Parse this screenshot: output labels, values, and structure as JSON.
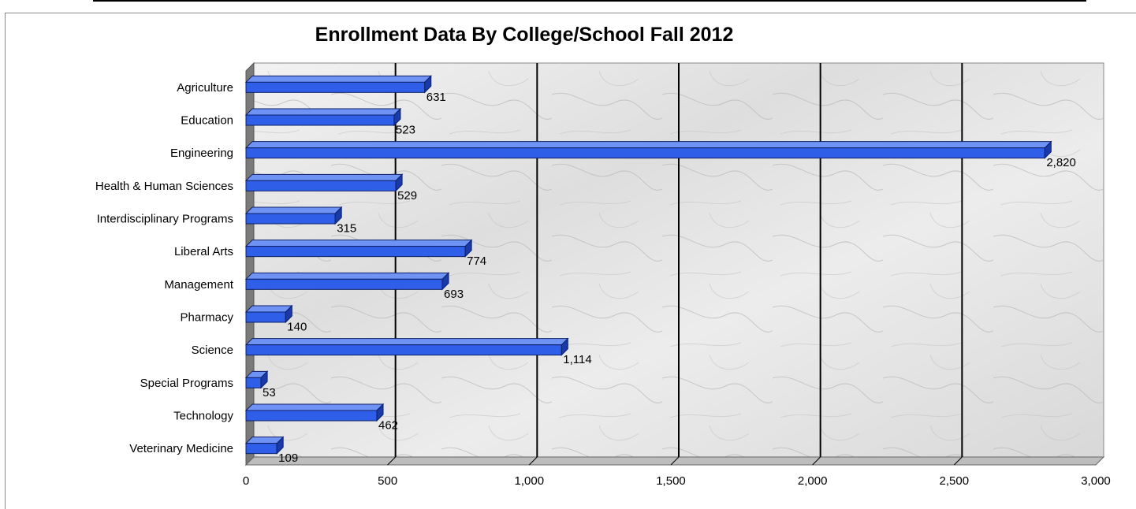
{
  "chart_data": {
    "type": "bar",
    "orientation": "horizontal",
    "title": "Enrollment Data By College/School Fall 2012",
    "xlabel": "",
    "ylabel": "",
    "categories": [
      "Agriculture",
      "Education",
      "Engineering",
      "Health & Human Sciences",
      "Interdisciplinary Programs",
      "Liberal Arts",
      "Management",
      "Pharmacy",
      "Science",
      "Special Programs",
      "Technology",
      "Veterinary Medicine"
    ],
    "values": [
      631,
      523,
      2820,
      529,
      315,
      774,
      693,
      140,
      1114,
      53,
      462,
      109
    ],
    "value_labels": [
      "631",
      "523",
      "2,820",
      "529",
      "315",
      "774",
      "693",
      "140",
      "1,114",
      "53",
      "462",
      "109"
    ],
    "xlim": [
      0,
      3000
    ],
    "x_ticks": [
      0,
      500,
      1000,
      1500,
      2000,
      2500,
      3000
    ],
    "x_tick_labels": [
      "0",
      "500",
      "1,000",
      "1,500",
      "2,000",
      "2,500",
      "3,000"
    ],
    "grid": true,
    "legend": "none",
    "colors": {
      "bar_front": "#2f5fe8",
      "bar_top": "#6f93f5",
      "bar_side": "#1b3aa8",
      "gridline": "#000000",
      "floor_wall": "#7a7a7a"
    }
  }
}
